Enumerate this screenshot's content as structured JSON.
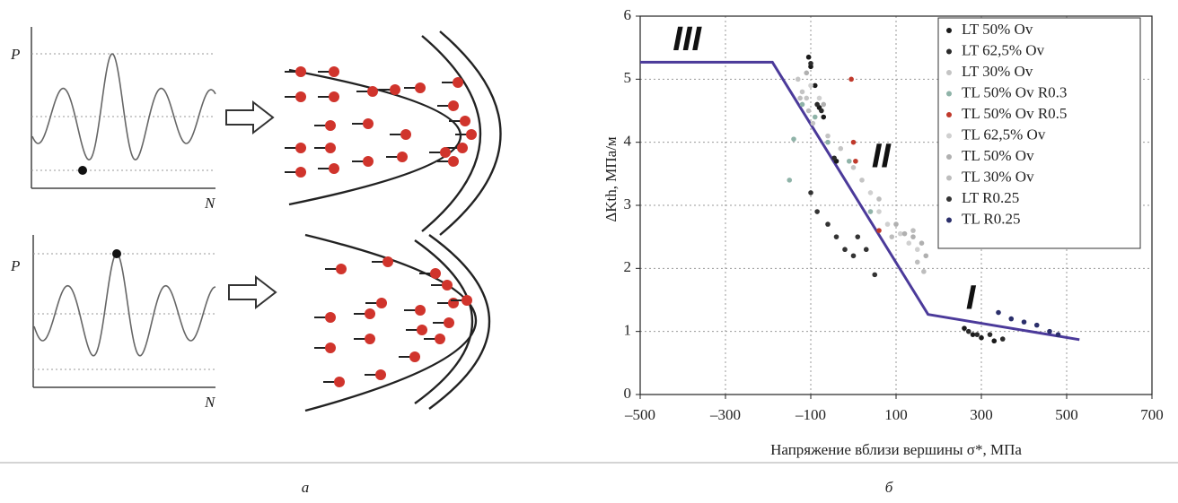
{
  "diagram": {
    "panels": [
      {
        "y_label": "P",
        "x_label": "N"
      },
      {
        "y_label": "P",
        "x_label": "N"
      }
    ]
  },
  "captions": [
    "а",
    "б"
  ],
  "chart_data": {
    "type": "scatter",
    "x_label": "Напряжение вблизи вершины σ*, МПа",
    "y_label": "ΔKth, МПа/м",
    "xlim": [
      -500,
      700
    ],
    "xticks": [
      {
        "value": -500,
        "label": "–500"
      },
      {
        "value": -300,
        "label": "–300"
      },
      {
        "value": -100,
        "label": "–100"
      },
      100,
      300,
      500,
      700
    ],
    "ylim": [
      0,
      6
    ],
    "yticks": [
      0,
      1,
      2,
      3,
      4,
      5,
      6
    ],
    "grid": true,
    "legend": "upper right",
    "annotations": [
      {
        "text": "III",
        "x": -390,
        "y": 5.6
      },
      {
        "text": "II",
        "x": 65,
        "y": 3.75
      },
      {
        "text": "I",
        "x": 275,
        "y": 1.5
      }
    ],
    "fit_line": {
      "color": "#4b3a9a",
      "x": [
        -500,
        -190,
        175,
        530
      ],
      "values": [
        5.27,
        5.27,
        1.27,
        0.87
      ]
    },
    "series": [
      {
        "name": "LT 50% Ov",
        "color": "#1a1a1a",
        "x": [
          -105,
          -100,
          -90,
          -80,
          -70,
          -40,
          260,
          280,
          300,
          330
        ],
        "values": [
          5.35,
          5.2,
          4.9,
          4.55,
          4.4,
          3.7,
          1.05,
          0.95,
          0.9,
          0.85
        ]
      },
      {
        "name": "LT 62,5% Ov",
        "color": "#2a2a2a",
        "x": [
          -100,
          -85,
          -75,
          -45,
          270,
          290,
          320,
          350
        ],
        "values": [
          5.25,
          4.6,
          4.5,
          3.75,
          1.0,
          0.95,
          0.95,
          0.88
        ]
      },
      {
        "name": "LT 30% Ov",
        "color": "#c4c4c4",
        "x": [
          -130,
          -120,
          -110,
          -95,
          -60,
          -30,
          0,
          20
        ],
        "values": [
          5.0,
          4.8,
          4.7,
          4.3,
          4.1,
          3.9,
          3.6,
          3.4
        ]
      },
      {
        "name": "TL 50% Ov R0.3",
        "color": "#8fb3a8",
        "x": [
          -150,
          -140,
          -120,
          -90,
          -60,
          -10,
          40
        ],
        "values": [
          3.4,
          4.05,
          4.6,
          4.4,
          4.0,
          3.7,
          2.9
        ]
      },
      {
        "name": "TL 50% Ov R0.5",
        "color": "#c0392b",
        "x": [
          -5,
          0,
          5,
          60
        ],
        "values": [
          5.0,
          4.0,
          3.7,
          2.6
        ]
      },
      {
        "name": "TL 62,5% Ov",
        "color": "#d0d0d0",
        "x": [
          -100,
          -80,
          40,
          60,
          80,
          110,
          130,
          150
        ],
        "values": [
          4.9,
          4.7,
          3.2,
          2.9,
          2.7,
          2.55,
          2.4,
          2.3
        ]
      },
      {
        "name": "TL 50% Ov",
        "color": "#b0b0b0",
        "x": [
          -110,
          -70,
          100,
          120,
          140,
          160,
          170
        ],
        "values": [
          5.1,
          4.6,
          2.7,
          2.55,
          2.5,
          2.4,
          2.2
        ]
      },
      {
        "name": "TL 30% Ov",
        "color": "#bdbdbd",
        "x": [
          -125,
          -105,
          60,
          90,
          140,
          150,
          165
        ],
        "values": [
          4.7,
          4.5,
          3.1,
          2.5,
          2.6,
          2.1,
          1.95
        ]
      },
      {
        "name": "LT R0.25",
        "color": "#333333",
        "x": [
          -100,
          -85,
          -60,
          -40,
          -20,
          0,
          10,
          30,
          50
        ],
        "values": [
          3.2,
          2.9,
          2.7,
          2.5,
          2.3,
          2.2,
          2.5,
          2.3,
          1.9
        ]
      },
      {
        "name": "TL R0.25",
        "color": "#2b2f6b",
        "x": [
          340,
          370,
          400,
          430,
          460,
          480
        ],
        "values": [
          1.3,
          1.2,
          1.15,
          1.1,
          1.0,
          0.95
        ]
      }
    ]
  }
}
